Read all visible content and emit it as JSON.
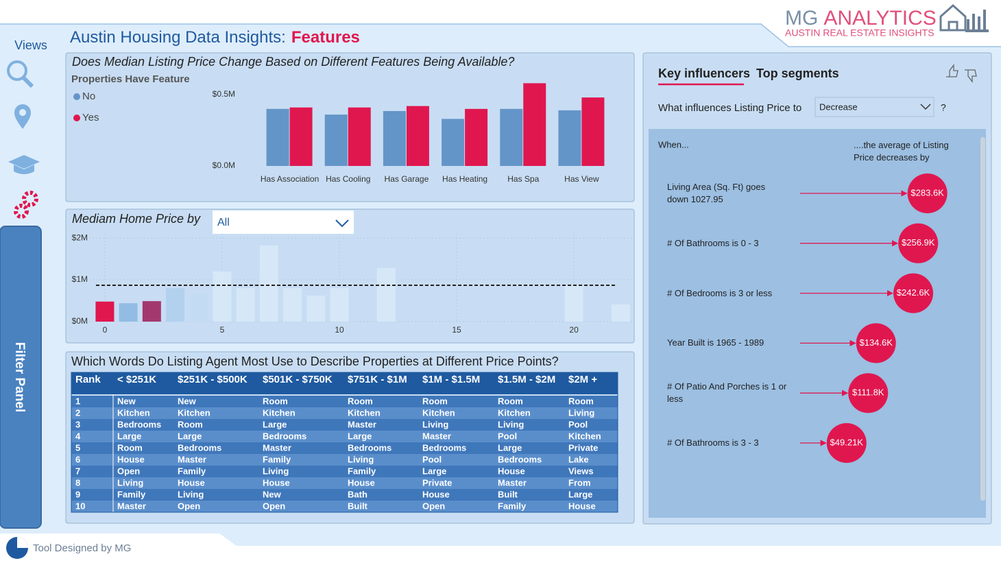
{
  "header": {
    "title": "Austin Housing Data Insights:",
    "title_highlight": "Features",
    "logo_primary": "MG",
    "logo_secondary": "ANALYTICS",
    "logo_tagline": "AUSTIN REAL ESTATE INSIGHTS"
  },
  "sidebar": {
    "views_label": "Views",
    "filter_panel": "Filter Panel"
  },
  "chart_data": [
    {
      "type": "bar",
      "title": "Does Median Listing Price Change Based on Different Features Being Available?",
      "legend_title": "Properties Have Feature",
      "legend": "top-left",
      "categories": [
        "Has Association",
        "Has Cooling",
        "Has Garage",
        "Has Heating",
        "Has Spa",
        "Has View"
      ],
      "series": [
        {
          "name": "No",
          "color": "#6495c8",
          "values": [
            0.4,
            0.36,
            0.385,
            0.33,
            0.4,
            0.39
          ]
        },
        {
          "name": "Yes",
          "color": "#e0174f",
          "values": [
            0.41,
            0.41,
            0.42,
            0.4,
            0.58,
            0.48
          ]
        }
      ],
      "ylim": [
        0,
        0.6
      ],
      "yticks": [
        {
          "value": 0,
          "label": "$0.0M"
        },
        {
          "value": 0.5,
          "label": "$0.5M"
        }
      ]
    },
    {
      "type": "bar",
      "title": "Mediam Home Price by",
      "filter_value": "All",
      "x": [
        0,
        1,
        2,
        3,
        4,
        5,
        6,
        7,
        8,
        9,
        10,
        12,
        20,
        22
      ],
      "values": [
        0.48,
        0.44,
        0.49,
        0.8,
        0.67,
        1.2,
        0.8,
        1.82,
        0.8,
        0.62,
        0.8,
        1.28,
        0.87,
        0.41
      ],
      "colors": [
        "#e0174f",
        "#92bce4",
        "#a3386f",
        "#b2d1ee",
        "#c4dcf3",
        "#d6e8f8",
        "#d6e8f8",
        "#d6e8f8",
        "#d6e8f8",
        "#d6e8f8",
        "#d6e8f8",
        "#d6e8f8",
        "#d6e8f8",
        "#d6e8f8"
      ],
      "xlim": [
        -0.67,
        22.57
      ],
      "xticks": [
        0,
        5,
        10,
        15,
        20
      ],
      "ylim": [
        0,
        2.1
      ],
      "yticks": [
        {
          "value": 0,
          "label": "$0M"
        },
        {
          "value": 1,
          "label": "$1M"
        },
        {
          "value": 2,
          "label": "$2M"
        }
      ],
      "average_line": 0.87,
      "grid": true
    },
    {
      "type": "influencer",
      "color": "#e0174f",
      "categories": [
        "Living Area (Sq. Ft) goes down 1027.95",
        "# Of Bathrooms is 0 - 3",
        "# Of Bedrooms is 3 or less",
        "Year Built is 1965 - 1989",
        "# Of Patio And Porches is 1 or less",
        "# Of Bathrooms is 3 - 3"
      ],
      "values": [
        283.6,
        256.9,
        242.6,
        134.6,
        111.8,
        49.21
      ],
      "value_labels": [
        "$283.6K",
        "$256.9K",
        "$242.6K",
        "$134.6K",
        "$111.8K",
        "$49.21K"
      ]
    }
  ],
  "words_table": {
    "title": "Which Words Do Listing Agent Most Use to Describe Properties at Different Price Points?",
    "columns": [
      "Rank",
      "< $251K",
      "$251K - $500K",
      "$501K - $750K",
      "$751K - $1M",
      "$1M - $1.5M",
      "$1.5M - $2M",
      "$2M +"
    ],
    "rows": [
      [
        "1",
        "New",
        "New",
        "Room",
        "Room",
        "Room",
        "Room",
        "Room"
      ],
      [
        "2",
        "Kitchen",
        "Kitchen",
        "Kitchen",
        "Kitchen",
        "Kitchen",
        "Kitchen",
        "Living"
      ],
      [
        "3",
        "Bedrooms",
        "Room",
        "Large",
        "Master",
        "Living",
        "Living",
        "Pool"
      ],
      [
        "4",
        "Large",
        "Large",
        "Bedrooms",
        "Large",
        "Master",
        "Pool",
        "Kitchen"
      ],
      [
        "5",
        "Room",
        "Bedrooms",
        "Master",
        "Bedrooms",
        "Bedrooms",
        "Large",
        "Private"
      ],
      [
        "6",
        "House",
        "Master",
        "Family",
        "Living",
        "Pool",
        "Bedrooms",
        "Lake"
      ],
      [
        "7",
        "Open",
        "Family",
        "Living",
        "Family",
        "Large",
        "House",
        "Views"
      ],
      [
        "8",
        "Living",
        "House",
        "House",
        "House",
        "Private",
        "Master",
        "From"
      ],
      [
        "9",
        "Family",
        "Living",
        "New",
        "Bath",
        "House",
        "Built",
        "Large"
      ],
      [
        "10",
        "Master",
        "Open",
        "Open",
        "Built",
        "Open",
        "Family",
        "House"
      ]
    ]
  },
  "key_influencers": {
    "tabs": [
      "Key influencers",
      "Top segments"
    ],
    "question": "What influences Listing Price to",
    "dropdown_value": "Decrease",
    "help": "?",
    "when_label": "When...",
    "effect_label": "....the average of Listing Price decreases by"
  },
  "footer": {
    "credit": "Tool Designed by MG"
  }
}
